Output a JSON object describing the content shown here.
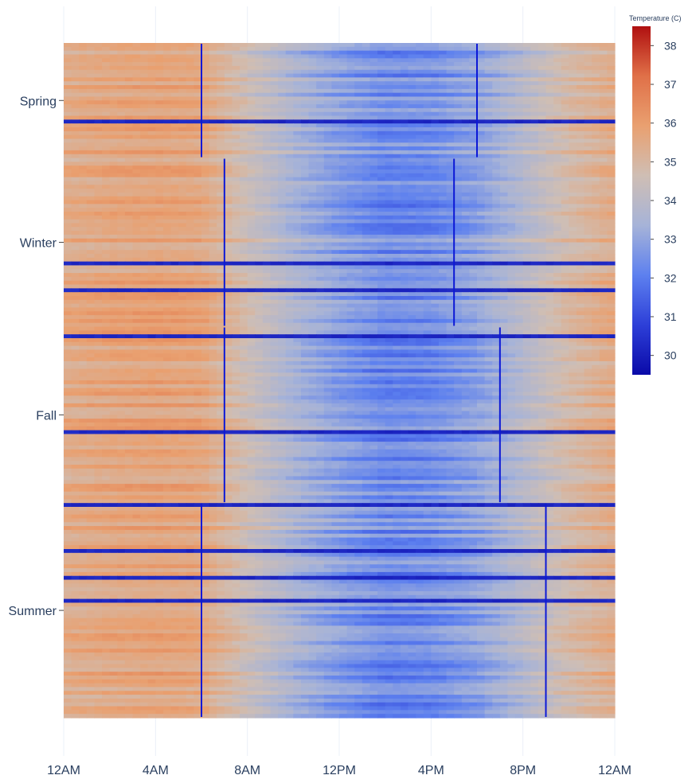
{
  "chart_data": {
    "type": "heatmap",
    "title": "",
    "xlabel": "",
    "ylabel": "",
    "x_tick_labels": [
      "12AM",
      "4AM",
      "8AM",
      "12PM",
      "4PM",
      "8PM",
      "12AM"
    ],
    "x_range_hours": [
      0,
      24
    ],
    "categories": [
      {
        "name": "Spring",
        "rows": 30,
        "sunrise_hour": 6,
        "sunset_hour": 18
      },
      {
        "name": "Winter",
        "rows": 44,
        "sunrise_hour": 7,
        "sunset_hour": 17
      },
      {
        "name": "Fall",
        "rows": 46,
        "sunrise_hour": 7,
        "sunset_hour": 19
      },
      {
        "name": "Summer",
        "rows": 56,
        "sunrise_hour": 6,
        "sunset_hour": 21
      }
    ],
    "colorbar": {
      "title": "Temperature (C)",
      "range": [
        29.5,
        38.5
      ],
      "ticks": [
        30,
        31,
        32,
        33,
        34,
        35,
        36,
        37,
        38
      ],
      "colorscale": [
        "#0a0aa8",
        "#2d3fd8",
        "#5d80ef",
        "#a6b3d8",
        "#cfbeb4",
        "#e9a070",
        "#e07048",
        "#b01010"
      ]
    },
    "daily_temperature_profile": {
      "hours": [
        0,
        2,
        4,
        6,
        8,
        10,
        12,
        14,
        16,
        18,
        20,
        22,
        24
      ],
      "temperature_c": [
        35.4,
        35.6,
        35.7,
        35.6,
        34.5,
        33.5,
        32.8,
        32.3,
        32.4,
        32.9,
        33.8,
        34.8,
        35.4
      ]
    },
    "cold_row_temperature_c": 30.2,
    "sun_marker_color": "#0c18d6"
  }
}
